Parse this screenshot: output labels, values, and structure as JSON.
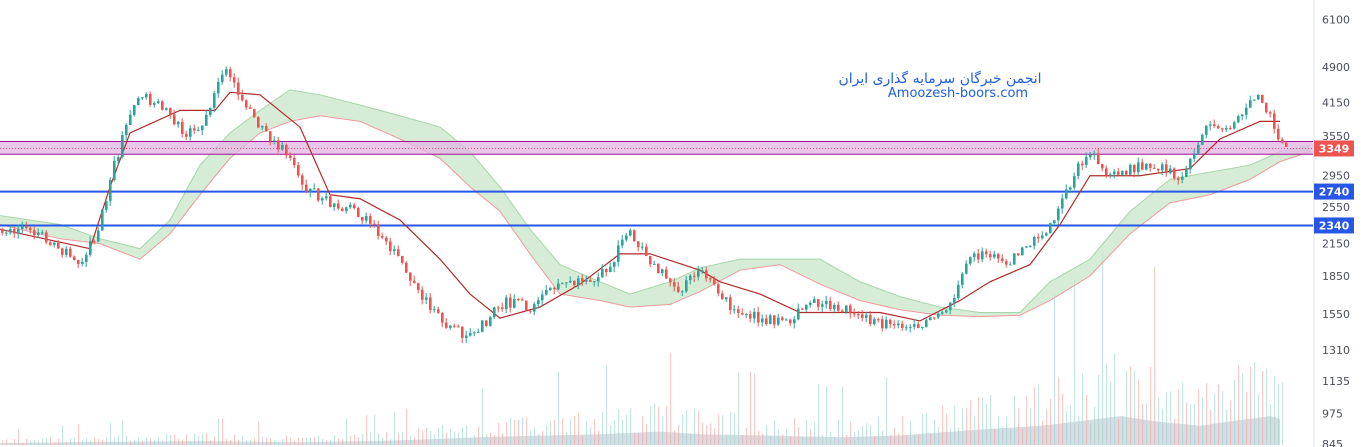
{
  "watermark": {
    "line1": "انجمن خبرگان سرمایه گذاری ایران",
    "line2": "Amoozesh-boors.com"
  },
  "colors": {
    "up": "#26a69a",
    "down": "#ef5350",
    "support_line": "#2756e8",
    "zone_fill": "#e5b8e6",
    "zone_border": "#a1148f",
    "price_tag": "#ef5350",
    "level_tag": "#2756e8",
    "baseline": "#b22a2a",
    "cloud_green": "#c8e6c9",
    "cloud_red": "#f8cfcc",
    "volume": "#d4d6de"
  },
  "chart_data": {
    "type": "candlestick",
    "y_axis_scale": "log",
    "ylim": [
      845,
      6600
    ],
    "y_ticks": [
      "6100",
      "4900",
      "4150",
      "3550",
      "2950",
      "2550",
      "2150",
      "1850",
      "1550",
      "1310",
      "1135",
      "975",
      "845"
    ],
    "price_markers": [
      {
        "label": "3349",
        "value": 3349,
        "kind": "last_price"
      },
      {
        "label": "2740",
        "value": 2740,
        "kind": "horizontal_line"
      },
      {
        "label": "2340",
        "value": 2340,
        "kind": "horizontal_line"
      }
    ],
    "zone": {
      "from": 3260,
      "to": 3460
    },
    "price_path": [
      [
        0,
        2300
      ],
      [
        40,
        2260
      ],
      [
        80,
        1960
      ],
      [
        100,
        2300
      ],
      [
        120,
        3350
      ],
      [
        140,
        4350
      ],
      [
        165,
        4000
      ],
      [
        185,
        3600
      ],
      [
        205,
        3800
      ],
      [
        225,
        4800
      ],
      [
        240,
        4350
      ],
      [
        260,
        3700
      ],
      [
        285,
        3300
      ],
      [
        305,
        2800
      ],
      [
        330,
        2600
      ],
      [
        355,
        2520
      ],
      [
        375,
        2300
      ],
      [
        395,
        2050
      ],
      [
        415,
        1750
      ],
      [
        440,
        1520
      ],
      [
        465,
        1400
      ],
      [
        485,
        1480
      ],
      [
        505,
        1640
      ],
      [
        530,
        1600
      ],
      [
        545,
        1700
      ],
      [
        565,
        1780
      ],
      [
        590,
        1820
      ],
      [
        610,
        1900
      ],
      [
        628,
        2300
      ],
      [
        645,
        2070
      ],
      [
        665,
        1850
      ],
      [
        680,
        1700
      ],
      [
        700,
        1920
      ],
      [
        720,
        1680
      ],
      [
        740,
        1560
      ],
      [
        760,
        1520
      ],
      [
        790,
        1500
      ],
      [
        815,
        1640
      ],
      [
        840,
        1600
      ],
      [
        865,
        1520
      ],
      [
        890,
        1470
      ],
      [
        915,
        1460
      ],
      [
        930,
        1500
      ],
      [
        950,
        1600
      ],
      [
        970,
        2000
      ],
      [
        990,
        2050
      ],
      [
        1005,
        1950
      ],
      [
        1030,
        2150
      ],
      [
        1050,
        2300
      ],
      [
        1065,
        2700
      ],
      [
        1080,
        3100
      ],
      [
        1095,
        3200
      ],
      [
        1110,
        2900
      ],
      [
        1130,
        3050
      ],
      [
        1160,
        3100
      ],
      [
        1180,
        2950
      ],
      [
        1195,
        3200
      ],
      [
        1210,
        3750
      ],
      [
        1235,
        3750
      ],
      [
        1260,
        4300
      ],
      [
        1275,
        3700
      ],
      [
        1285,
        3349
      ]
    ],
    "baseline_path": [
      [
        0,
        2300
      ],
      [
        90,
        2100
      ],
      [
        110,
        2800
      ],
      [
        130,
        3600
      ],
      [
        180,
        4000
      ],
      [
        215,
        4000
      ],
      [
        230,
        4350
      ],
      [
        260,
        4300
      ],
      [
        300,
        3700
      ],
      [
        330,
        2700
      ],
      [
        360,
        2650
      ],
      [
        400,
        2400
      ],
      [
        440,
        2000
      ],
      [
        470,
        1700
      ],
      [
        500,
        1520
      ],
      [
        540,
        1600
      ],
      [
        580,
        1780
      ],
      [
        620,
        2050
      ],
      [
        650,
        2050
      ],
      [
        700,
        1900
      ],
      [
        720,
        1800
      ],
      [
        760,
        1700
      ],
      [
        800,
        1560
      ],
      [
        850,
        1560
      ],
      [
        880,
        1560
      ],
      [
        920,
        1500
      ],
      [
        960,
        1650
      ],
      [
        990,
        1800
      ],
      [
        1030,
        1950
      ],
      [
        1060,
        2350
      ],
      [
        1090,
        2950
      ],
      [
        1140,
        2950
      ],
      [
        1190,
        3050
      ],
      [
        1220,
        3500
      ],
      [
        1260,
        3800
      ],
      [
        1280,
        3800
      ]
    ],
    "cloud": [
      [
        0,
        2450,
        2350
      ],
      [
        60,
        2350,
        2200
      ],
      [
        100,
        2200,
        2150
      ],
      [
        140,
        2100,
        2000
      ],
      [
        170,
        2400,
        2250
      ],
      [
        200,
        3100,
        2700
      ],
      [
        230,
        3600,
        3200
      ],
      [
        260,
        4000,
        3600
      ],
      [
        290,
        4400,
        3800
      ],
      [
        320,
        4300,
        3900
      ],
      [
        360,
        4100,
        3800
      ],
      [
        400,
        3900,
        3500
      ],
      [
        440,
        3700,
        3200
      ],
      [
        470,
        3300,
        2800
      ],
      [
        500,
        2800,
        2500
      ],
      [
        530,
        2300,
        2050
      ],
      [
        560,
        1950,
        1700
      ],
      [
        600,
        1800,
        1650
      ],
      [
        630,
        1700,
        1600
      ],
      [
        670,
        1800,
        1620
      ],
      [
        700,
        1920,
        1720
      ],
      [
        740,
        2000,
        1900
      ],
      [
        780,
        2000,
        1950
      ],
      [
        820,
        2000,
        1780
      ],
      [
        860,
        1800,
        1650
      ],
      [
        900,
        1680,
        1580
      ],
      [
        940,
        1600,
        1540
      ],
      [
        980,
        1560,
        1530
      ],
      [
        1020,
        1560,
        1540
      ],
      [
        1050,
        1800,
        1650
      ],
      [
        1090,
        2000,
        1850
      ],
      [
        1130,
        2500,
        2250
      ],
      [
        1170,
        2900,
        2600
      ],
      [
        1210,
        3000,
        2700
      ],
      [
        1250,
        3100,
        2900
      ],
      [
        1280,
        3300,
        3150
      ],
      [
        1310,
        3400,
        3300
      ]
    ],
    "volume_profile": [
      [
        0,
        0.05
      ],
      [
        100,
        0.08
      ],
      [
        200,
        0.1
      ],
      [
        300,
        0.07
      ],
      [
        400,
        0.12
      ],
      [
        500,
        0.22
      ],
      [
        600,
        0.28
      ],
      [
        660,
        0.35
      ],
      [
        700,
        0.28
      ],
      [
        760,
        0.25
      ],
      [
        840,
        0.2
      ],
      [
        900,
        0.25
      ],
      [
        980,
        0.4
      ],
      [
        1040,
        0.5
      ],
      [
        1080,
        0.62
      ],
      [
        1120,
        0.75
      ],
      [
        1160,
        0.6
      ],
      [
        1200,
        0.5
      ],
      [
        1240,
        0.65
      ],
      [
        1270,
        0.75
      ],
      [
        1280,
        0.68
      ]
    ]
  }
}
